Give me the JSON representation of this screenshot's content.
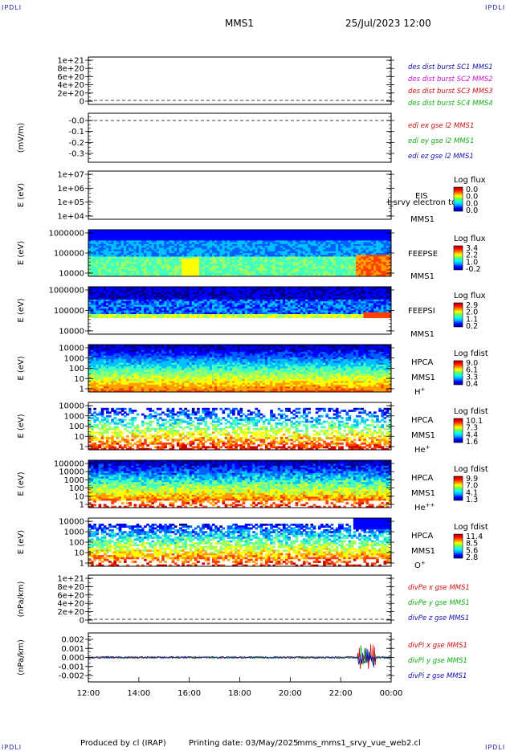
{
  "header": {
    "corner_label": "IPDLI",
    "mission": "MMS1",
    "date_time": "25/Jul/2023 12:00"
  },
  "footer": {
    "produced_by": "Produced by cl (IRAP)",
    "printing_date": "Printing date: 03/May/2025",
    "filename": "mms_mms1_srvy_vue_web2.cl"
  },
  "colors": {
    "panel_bg": "#ffffff",
    "dashed_line": "#000000",
    "series_red": "#d01010",
    "series_green": "#10b010",
    "series_blue": "#1010b0",
    "series_magenta": "#d010d0"
  },
  "chart_data": [
    {
      "id": "p1",
      "type": "line",
      "yticks": [
        "1e+21",
        "8e+20",
        "6e+20",
        "4e+20",
        "2e+20",
        "0"
      ],
      "legend": [
        {
          "text": "des dist burst SC1 MMS1",
          "color": "#1010b0"
        },
        {
          "text": "des dist burst SC2 MMS2",
          "color": "#d010d0"
        },
        {
          "text": "des dist burst SC3 MMS3",
          "color": "#d01010"
        },
        {
          "text": "des dist burst SC4 MMS4",
          "color": "#10b010"
        }
      ]
    },
    {
      "id": "p2",
      "type": "line",
      "ylabel": "(mV/m)",
      "yticks": [
        "-0.0",
        "-0.1",
        "-0.2",
        "-0.3"
      ],
      "legend": [
        {
          "text": "edi ex gse l2 MMS1",
          "color": "#d01010"
        },
        {
          "text": "edi ey gse l2 MMS1",
          "color": "#10b010"
        },
        {
          "text": "edi ez gse l2 MMS1",
          "color": "#1010b0"
        }
      ]
    },
    {
      "id": "p3",
      "type": "heatmap",
      "ylabel": "E (eV)",
      "yticks": [
        "1e+07",
        "1e+06",
        "1e+05",
        "1e+04"
      ],
      "labels": [
        "EIS",
        "MMS1"
      ],
      "overlay_text": "l_srvy electron to",
      "colorbar": {
        "title": "Log flux",
        "ticks": [
          "0.0",
          "0.0",
          "0.0",
          "0.0"
        ]
      }
    },
    {
      "id": "p4",
      "type": "heatmap",
      "ylabel": "E (eV)",
      "yticks": [
        "1000000",
        "100000",
        "10000"
      ],
      "labels": [
        "FEEPSE",
        "MMS1"
      ],
      "colorbar": {
        "title": "Log flux",
        "ticks": [
          "3.4",
          "2.2",
          "1.0",
          "-0.2"
        ]
      }
    },
    {
      "id": "p5",
      "type": "heatmap",
      "ylabel": "E (eV)",
      "yticks": [
        "1000000",
        "100000",
        "10000"
      ],
      "labels": [
        "FEEPSI",
        "MMS1"
      ],
      "colorbar": {
        "title": "Log flux",
        "ticks": [
          "2.9",
          "2.0",
          "1.1",
          "0.2"
        ]
      }
    },
    {
      "id": "p6",
      "type": "heatmap",
      "ylabel": "E (eV)",
      "yticks": [
        "10000",
        "1000",
        "100",
        "10",
        "1"
      ],
      "labels": [
        "HPCA",
        "MMS1",
        "H"
      ],
      "species_sup": "+",
      "colorbar": {
        "title": "Log fdist",
        "ticks": [
          "9.0",
          "6.1",
          "3.3",
          "0.4"
        ]
      }
    },
    {
      "id": "p7",
      "type": "heatmap",
      "ylabel": "E (eV)",
      "yticks": [
        "10000",
        "1000",
        "100",
        "10",
        "1"
      ],
      "labels": [
        "HPCA",
        "MMS1",
        "He"
      ],
      "species_sup": "+",
      "colorbar": {
        "title": "Log fdist",
        "ticks": [
          "10.1",
          "7.3",
          "4.4",
          "1.6"
        ]
      }
    },
    {
      "id": "p8",
      "type": "heatmap",
      "ylabel": "E (eV)",
      "yticks": [
        "100000",
        "10000",
        "1000",
        "100",
        "10",
        "1"
      ],
      "labels": [
        "HPCA",
        "MMS1",
        "He"
      ],
      "species_sup": "++",
      "colorbar": {
        "title": "Log fdist",
        "ticks": [
          "9.9",
          "7.0",
          "4.1",
          "1.3"
        ]
      }
    },
    {
      "id": "p9",
      "type": "heatmap",
      "ylabel": "E (eV)",
      "yticks": [
        "10000",
        "1000",
        "100",
        "10",
        "1"
      ],
      "labels": [
        "HPCA",
        "MMS1",
        "O"
      ],
      "species_sup": "+",
      "colorbar": {
        "title": "Log fdist",
        "ticks": [
          "11.4",
          "8.5",
          "5.6",
          "2.8"
        ]
      }
    },
    {
      "id": "p10",
      "type": "line",
      "ylabel": "(nPa/km)",
      "yticks": [
        "1e+21",
        "8e+20",
        "6e+20",
        "4e+20",
        "2e+20",
        "0"
      ],
      "legend": [
        {
          "text": "divPe x gse MMS1",
          "color": "#d01010"
        },
        {
          "text": "divPe y gse MMS1",
          "color": "#10b010"
        },
        {
          "text": "divPe z gse MMS1",
          "color": "#1010b0"
        }
      ]
    },
    {
      "id": "p11",
      "type": "line",
      "ylabel": "(nPa/km)",
      "yticks": [
        "0.002",
        "0.001",
        "0.000",
        "-0.001",
        "-0.002"
      ],
      "legend": [
        {
          "text": "divPi x gse MMS1",
          "color": "#d01010"
        },
        {
          "text": "divPi y gse MMS1",
          "color": "#10b010"
        },
        {
          "text": "divPi z gse MMS1",
          "color": "#1010b0"
        }
      ]
    }
  ],
  "time_axis": {
    "ticks": [
      "12:00",
      "14:00",
      "16:00",
      "18:00",
      "20:00",
      "22:00",
      "00:00"
    ]
  }
}
